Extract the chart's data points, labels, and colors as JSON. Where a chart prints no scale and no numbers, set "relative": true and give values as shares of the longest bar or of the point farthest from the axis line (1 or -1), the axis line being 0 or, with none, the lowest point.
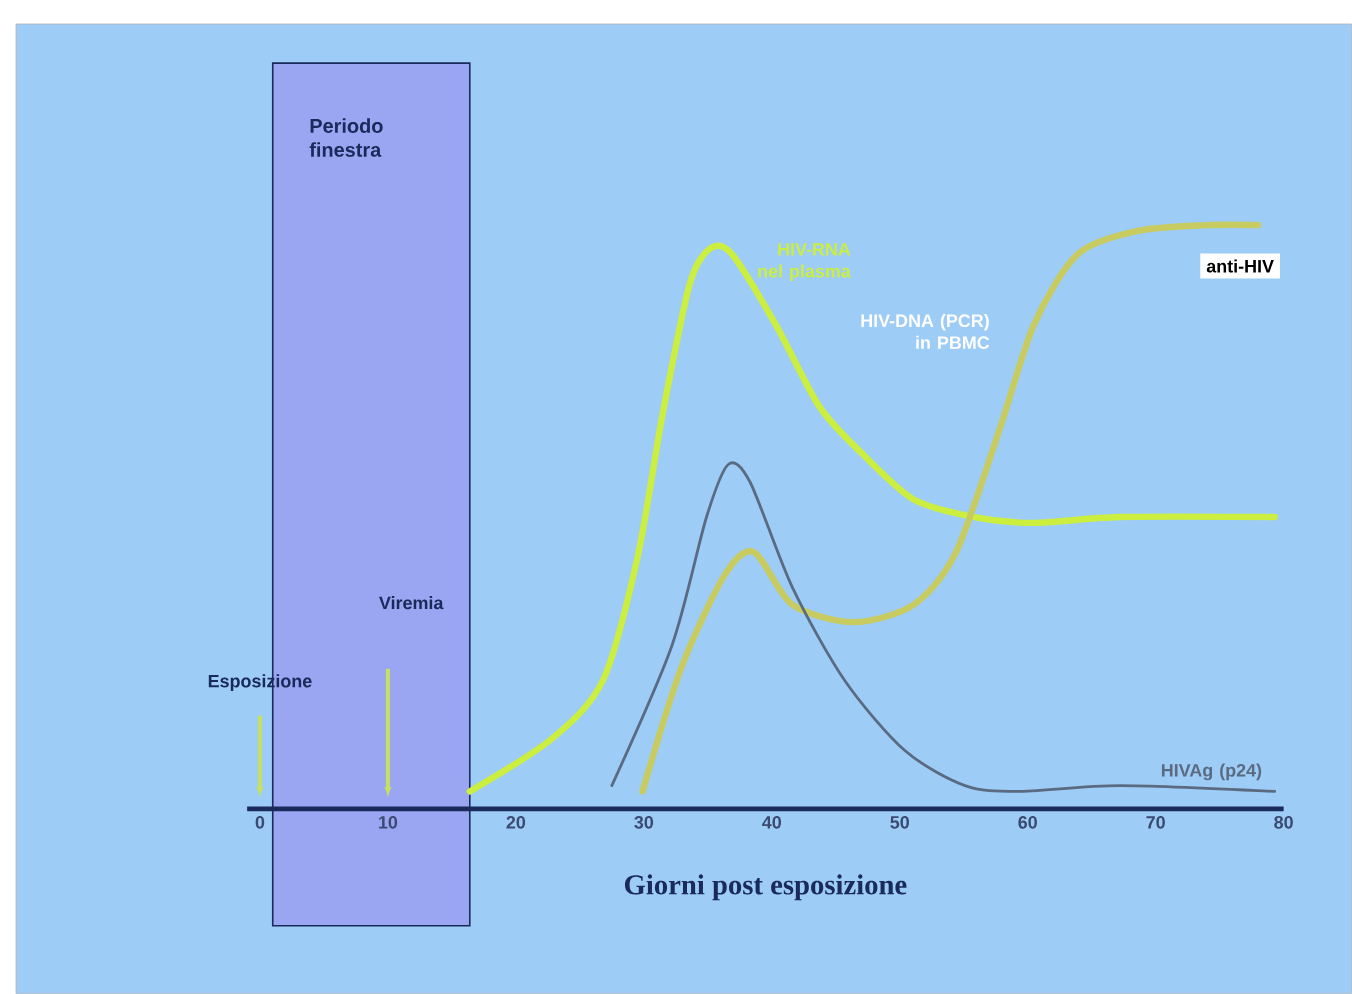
{
  "chart_data": {
    "type": "line",
    "relative": true,
    "xlabel": "Giorni post esposizione",
    "xlim": [
      -1,
      80
    ],
    "xticks": [
      0,
      10,
      20,
      30,
      40,
      50,
      60,
      70,
      80
    ],
    "grid": false,
    "legend": false,
    "marker": "none",
    "bands": [
      {
        "axis": "x",
        "from": 1,
        "to": 16.4,
        "label": "Periodo finestra",
        "color": "#9aa6f2"
      }
    ],
    "annotations": [
      "Esposizione",
      "Viremia",
      "HIV-DNA (PCR) in PBMC"
    ],
    "series": [
      {
        "name": "HIV-RNA nel plasma",
        "color": "#ccee3e",
        "x": [
          16.4,
          22.8,
          26.8,
          29.5,
          31.5,
          33.6,
          35.2,
          36.9,
          40.3,
          43.7,
          47.0,
          51.1,
          55.8,
          60.5,
          67.2,
          79.3
        ],
        "values": [
          0.03,
          0.12,
          0.22,
          0.43,
          0.68,
          0.9,
          0.96,
          0.95,
          0.83,
          0.69,
          0.61,
          0.53,
          0.5,
          0.49,
          0.5,
          0.5
        ]
      },
      {
        "name": "anti-HIV",
        "color": "#c8cc60",
        "x": [
          29.9,
          32.9,
          36.3,
          38.6,
          41.6,
          46.4,
          51.1,
          54.4,
          57.8,
          60.5,
          63.9,
          68.6,
          74.0,
          78.0
        ],
        "values": [
          0.03,
          0.24,
          0.4,
          0.44,
          0.35,
          0.32,
          0.35,
          0.44,
          0.65,
          0.83,
          0.95,
          0.99,
          1.0,
          1.0
        ]
      },
      {
        "name": "HIVAg (p24)",
        "color": "#5a6a80",
        "x": [
          27.5,
          32.2,
          34.9,
          36.6,
          38.3,
          41.6,
          45.7,
          50.4,
          55.1,
          59.2,
          67.2,
          79.3
        ],
        "values": [
          0.04,
          0.28,
          0.5,
          0.59,
          0.56,
          0.38,
          0.22,
          0.1,
          0.04,
          0.03,
          0.04,
          0.03
        ]
      }
    ]
  }
}
